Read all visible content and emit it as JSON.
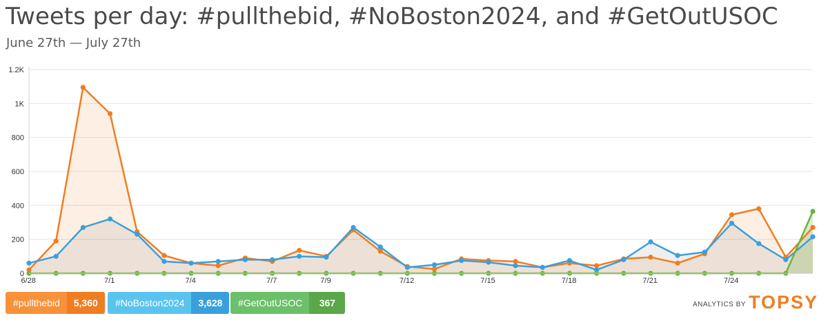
{
  "title": "Tweets per day: #pullthebid, #NoBoston2024, and #GetOutUSOC",
  "subtitle": "June 27th — July 27th",
  "chart_data": {
    "type": "line",
    "x": [
      "6/27",
      "6/28",
      "6/29",
      "6/30",
      "7/1",
      "7/2",
      "7/3",
      "7/4",
      "7/5",
      "7/6",
      "7/7",
      "7/8",
      "7/9",
      "7/10",
      "7/11",
      "7/12",
      "7/13",
      "7/14",
      "7/15",
      "7/16",
      "7/17",
      "7/18",
      "7/19",
      "7/20",
      "7/21",
      "7/22",
      "7/23",
      "7/24",
      "7/25",
      "7/26"
    ],
    "x_tick_labels": [
      "6/28",
      "7/1",
      "7/4",
      "7/7",
      "7/9",
      "7/12",
      "7/15",
      "7/18",
      "7/21",
      "7/24"
    ],
    "y_tick_labels": [
      "0",
      "200",
      "400",
      "600",
      "800",
      "1K",
      "1.2K"
    ],
    "ylim": [
      0,
      1200
    ],
    "grid": true,
    "series": [
      {
        "name": "#pullthebid",
        "color": "#f07d22",
        "values": [
          20,
          190,
          1095,
          940,
          245,
          105,
          60,
          45,
          90,
          70,
          135,
          100,
          255,
          130,
          40,
          25,
          85,
          75,
          70,
          35,
          60,
          45,
          85,
          95,
          60,
          115,
          345,
          380,
          95,
          270
        ]
      },
      {
        "name": "#NoBoston2024",
        "color": "#3aa0dc",
        "values": [
          60,
          100,
          270,
          320,
          230,
          70,
          60,
          70,
          80,
          80,
          100,
          95,
          270,
          155,
          35,
          50,
          75,
          65,
          45,
          35,
          75,
          20,
          80,
          185,
          105,
          125,
          295,
          175,
          80,
          215
        ]
      },
      {
        "name": "#GetOutUSOC",
        "color": "#6cb33f",
        "values": [
          0,
          0,
          0,
          0,
          0,
          0,
          0,
          0,
          0,
          0,
          0,
          0,
          0,
          0,
          0,
          0,
          0,
          0,
          0,
          0,
          0,
          0,
          0,
          0,
          0,
          0,
          0,
          0,
          0,
          365
        ]
      }
    ]
  },
  "legend": [
    {
      "label": "#pullthebid",
      "count": "5,360",
      "bg": "#f7913a",
      "count_bg": "#f07d22"
    },
    {
      "label": "#NoBoston2024",
      "count": "3,628",
      "bg": "#59c4ee",
      "count_bg": "#3aa0dc"
    },
    {
      "label": "#GetOutUSOC",
      "count": "367",
      "bg": "#6cc06a",
      "count_bg": "#5aa84a"
    }
  ],
  "brand": {
    "by": "ANALYTICS BY",
    "logo": "TOPSY"
  }
}
